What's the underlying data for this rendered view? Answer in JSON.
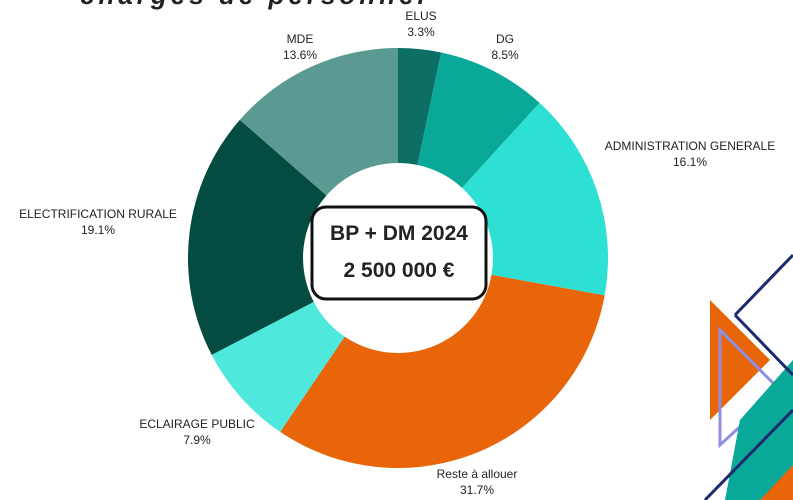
{
  "chart_data": {
    "type": "pie",
    "title": "charges de personnel",
    "center_text": [
      "BP + DM 2024",
      "2 500 000 €"
    ],
    "categories": [
      "ELUS",
      "DG",
      "ADMINISTRATION GENERALE",
      "Reste à allouer",
      "ECLAIRAGE PUBLIC",
      "ELECTRIFICATION RURALE",
      "MDE"
    ],
    "values": [
      3.3,
      8.5,
      16.1,
      31.7,
      7.9,
      19.1,
      13.6
    ],
    "value_labels": [
      "3.3%",
      "8.5%",
      "16.1%",
      "31.7%",
      "7.9%",
      "19.1%",
      "13.6%"
    ],
    "colors": [
      "#0d6e66",
      "#0aa898",
      "#2ee0d3",
      "#e8650a",
      "#4fe8dc",
      "#044b41",
      "#5a9a90"
    ]
  }
}
